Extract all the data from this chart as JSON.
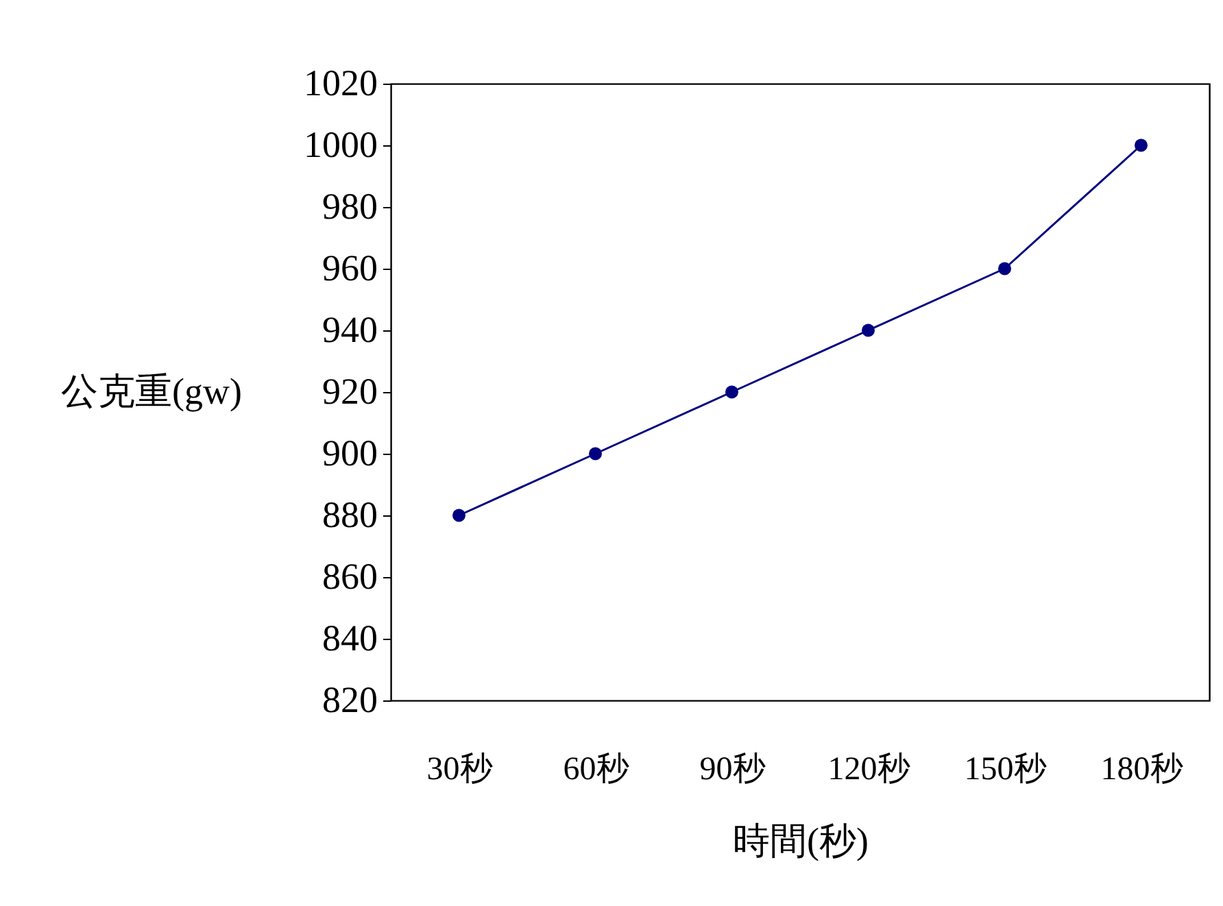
{
  "chart_data": {
    "type": "line",
    "xlabel": "時間(秒)",
    "ylabel": "公克重(gw)",
    "categories": [
      "30秒",
      "60秒",
      "90秒",
      "120秒",
      "150秒",
      "180秒"
    ],
    "series": [
      {
        "color": "#000080",
        "values": [
          880,
          900,
          920,
          940,
          960,
          1000
        ]
      }
    ],
    "ylim": [
      820,
      1020
    ],
    "yticks": [
      820,
      840,
      860,
      880,
      900,
      920,
      940,
      960,
      980,
      1000,
      1020
    ],
    "grid": false,
    "marker": "circle",
    "line_style": "solid"
  }
}
